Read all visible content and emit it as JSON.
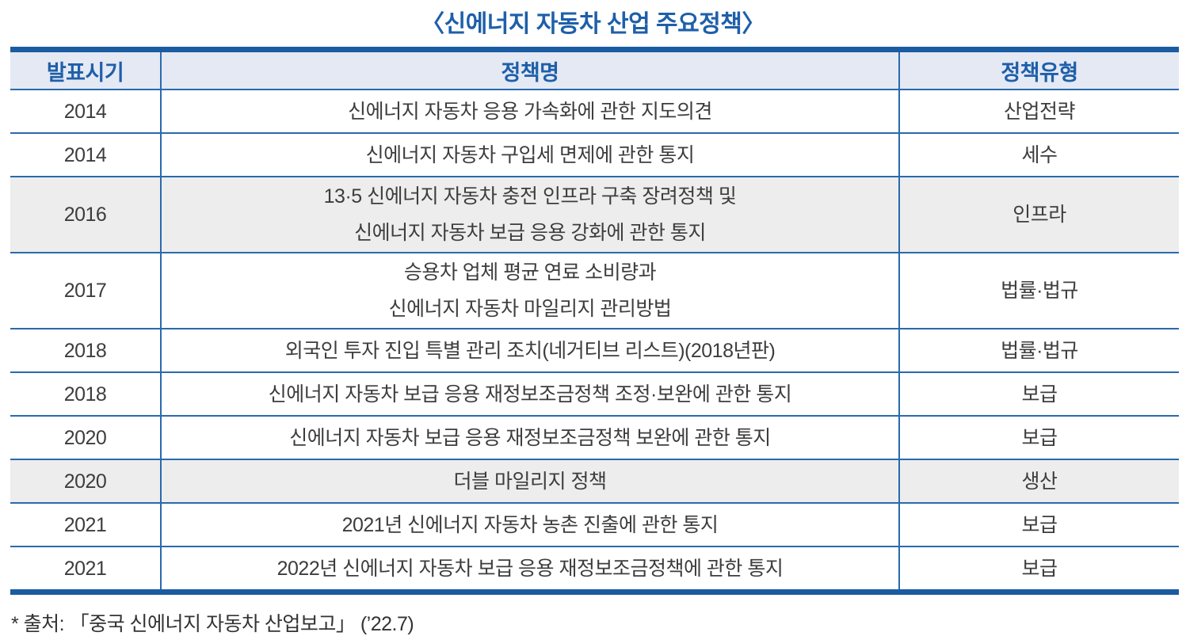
{
  "title": "〈신에너지 자동차 산업 주요정책〉",
  "table": {
    "columns": [
      "발표시기",
      "정책명",
      "정책유형"
    ],
    "rows": [
      {
        "year": "2014",
        "policy": "신에너지 자동차 응용 가속화에 관한 지도의견",
        "type": "산업전략",
        "shaded": false
      },
      {
        "year": "2014",
        "policy": "신에너지 자동차 구입세 면제에 관한 통지",
        "type": "세수",
        "shaded": false
      },
      {
        "year": "2016",
        "policy": "13·5 신에너지 자동차 충전 인프라 구축 장려정책 및\n신에너지 자동차 보급 응용 강화에 관한 통지",
        "type": "인프라",
        "shaded": true
      },
      {
        "year": "2017",
        "policy": "승용차 업체 평균 연료 소비량과\n신에너지 자동차 마일리지 관리방법",
        "type": "법률·법규",
        "shaded": false
      },
      {
        "year": "2018",
        "policy": "외국인 투자 진입 특별 관리 조치(네거티브 리스트)(2018년판)",
        "type": "법률·법규",
        "shaded": false
      },
      {
        "year": "2018",
        "policy": "신에너지 자동차 보급 응용 재정보조금정책 조정·보완에 관한 통지",
        "type": "보급",
        "shaded": false
      },
      {
        "year": "2020",
        "policy": "신에너지 자동차 보급 응용 재정보조금정책 보완에 관한 통지",
        "type": "보급",
        "shaded": false
      },
      {
        "year": "2020",
        "policy": "더블 마일리지 정책",
        "type": "생산",
        "shaded": true
      },
      {
        "year": "2021",
        "policy": "2021년 신에너지 자동차 농촌 진출에 관한 통지",
        "type": "보급",
        "shaded": false
      },
      {
        "year": "2021",
        "policy": "2022년 신에너지 자동차 보급 응용 재정보조금정책에 관한 통지",
        "type": "보급",
        "shaded": false
      }
    ]
  },
  "footnote": "* 출처: 「중국 신에너지 자동차 산업보고」 (’22.7)",
  "colors": {
    "accent_blue_text": "#1e5fa9",
    "thick_border_blue": "#1b5ca1",
    "thin_line_blue": "#2a6aad",
    "header_background": "#e4e9f4",
    "shaded_row_background": "#ededed",
    "body_text": "#3d3d3d"
  }
}
